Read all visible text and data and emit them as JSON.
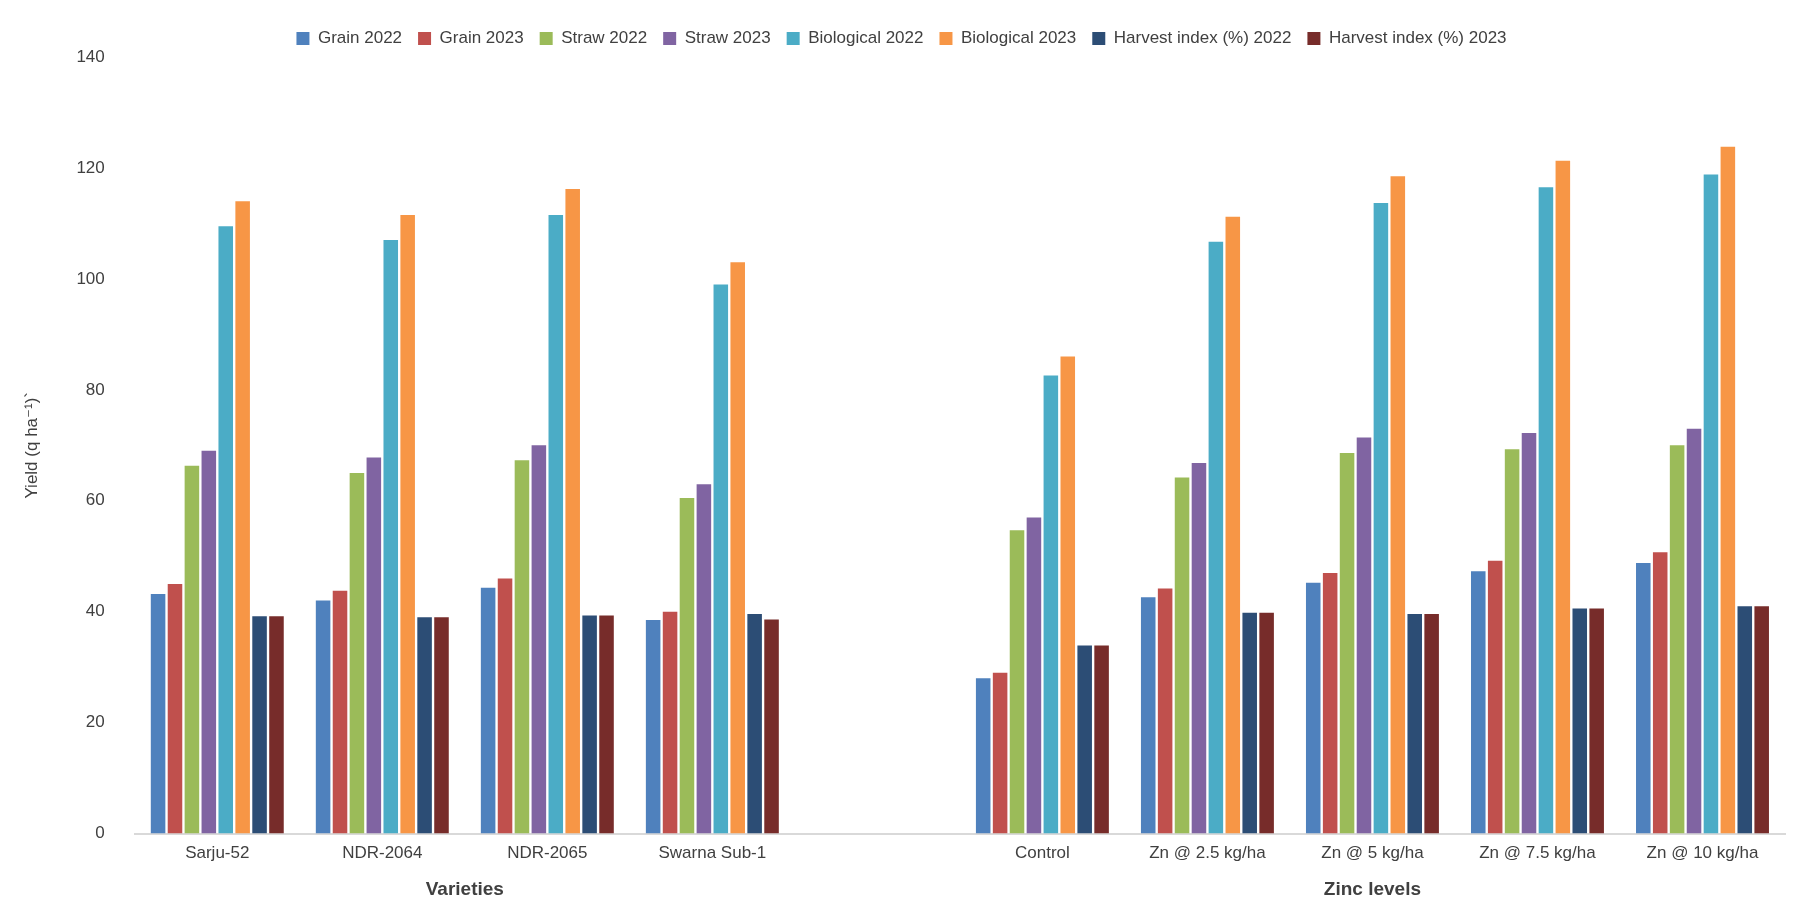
{
  "chart_data": {
    "type": "bar",
    "ylabel": "Yield (q ha⁻¹)`",
    "categories": [
      "Sarju-52",
      "NDR-2064",
      "NDR-2065",
      "Swarna Sub-1",
      null,
      "Control",
      "Zn @ 2.5 kg/ha",
      "Zn @ 5 kg/ha",
      "Zn @ 7.5 kg/ha",
      "Zn @ 10 kg/ha"
    ],
    "series": [
      {
        "name": "Grain 2022",
        "color": "#4f81bd",
        "values": [
          43.2,
          42,
          44.3,
          38.5,
          null,
          28,
          42.6,
          45.2,
          47.3,
          48.8
        ]
      },
      {
        "name": "Grain 2023",
        "color": "#c0504d",
        "values": [
          45,
          43.8,
          46,
          40,
          null,
          29,
          44.2,
          47,
          49.2,
          50.7
        ]
      },
      {
        "name": "Straw 2022",
        "color": "#9bbb59",
        "values": [
          66.3,
          65,
          67.3,
          60.5,
          null,
          54.7,
          64.2,
          68.6,
          69.3,
          70
        ]
      },
      {
        "name": "Straw 2023",
        "color": "#8064a2",
        "values": [
          69,
          67.8,
          70,
          63,
          null,
          57,
          66.8,
          71.4,
          72.2,
          73
        ]
      },
      {
        "name": "Biological 2022",
        "color": "#4bacc6",
        "values": [
          109.5,
          107,
          111.5,
          99,
          null,
          82.6,
          106.7,
          113.7,
          116.5,
          118.8
        ]
      },
      {
        "name": "Biological 2023",
        "color": "#f79646",
        "values": [
          114,
          111.5,
          116.2,
          103,
          null,
          86,
          111.2,
          118.5,
          121.3,
          123.8
        ]
      },
      {
        "name": "Harvest index (%) 2022",
        "color": "#2c4d75",
        "values": [
          39.2,
          39,
          39.3,
          39.6,
          null,
          33.9,
          39.8,
          39.6,
          40.6,
          41
        ]
      },
      {
        "name": "Harvest index (%) 2023",
        "color": "#772c2a",
        "values": [
          39.2,
          39,
          39.3,
          38.6,
          null,
          33.9,
          39.8,
          39.6,
          40.6,
          41
        ]
      }
    ],
    "ylim": [
      0,
      140
    ],
    "yticks": [
      0,
      20,
      40,
      60,
      80,
      100,
      120,
      140
    ],
    "grid": false,
    "legend": "top",
    "annotations": [
      "Varieties",
      "Zinc levels"
    ]
  }
}
